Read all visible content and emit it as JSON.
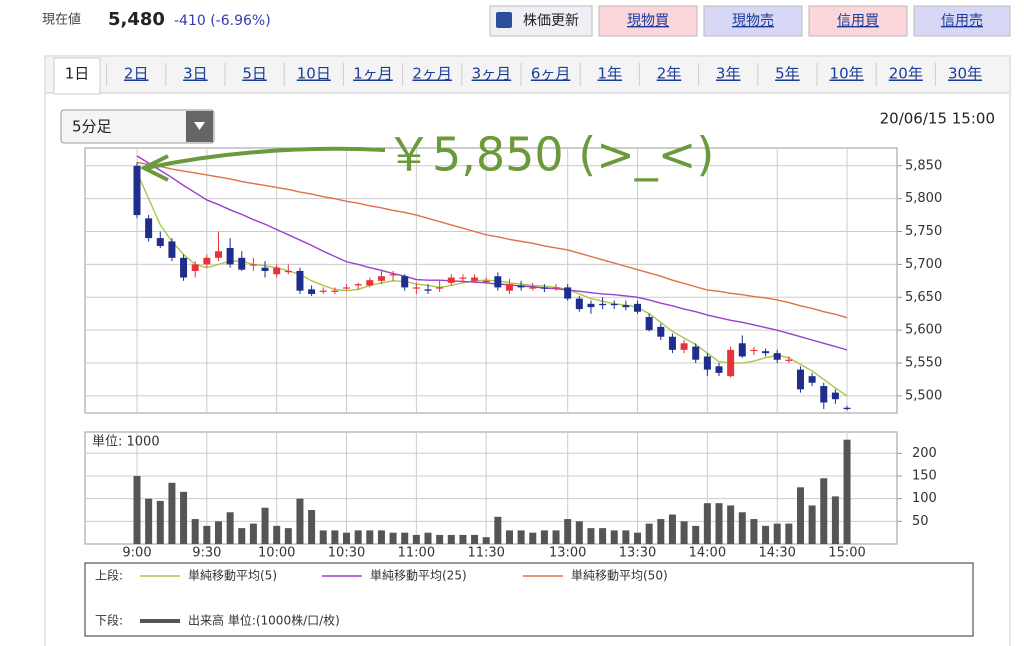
{
  "header": {
    "price_label": "現在値",
    "price": "5,480",
    "change": "-410 (-6.96%)",
    "buttons": [
      "株価更新",
      "現物買",
      "現物売",
      "信用買",
      "信用売"
    ]
  },
  "tabs": [
    "1日",
    "2日",
    "3日",
    "5日",
    "10日",
    "1ヶ月",
    "2ヶ月",
    "3ヶ月",
    "6ヶ月",
    "1年",
    "2年",
    "3年",
    "5年",
    "10年",
    "20年",
    "30年"
  ],
  "interval": "5分足",
  "timestamp": "20/06/15 15:00",
  "chart_data": [
    {
      "type": "candlestick",
      "annotation": "￥5,850 (>_<)",
      "legend_label": "上段:",
      "categories": [
        "9:00",
        null,
        null,
        null,
        null,
        null,
        "9:30",
        null,
        null,
        null,
        null,
        null,
        "10:00",
        null,
        null,
        null,
        null,
        null,
        "10:30",
        null,
        null,
        null,
        null,
        null,
        "11:00",
        null,
        null,
        null,
        null,
        null,
        "11:30",
        null,
        null,
        null,
        null,
        null,
        null,
        "13:00",
        null,
        null,
        null,
        null,
        null,
        "13:30",
        null,
        null,
        null,
        null,
        null,
        "14:00",
        null,
        null,
        null,
        null,
        null,
        "14:30",
        null,
        null,
        null,
        null,
        null,
        "15:00"
      ],
      "open": [
        5850,
        5770,
        5740,
        5735,
        5710,
        5690,
        5700,
        5710,
        5725,
        5710,
        5700,
        5695,
        5685,
        5690,
        5690,
        5662,
        5660,
        5660,
        5665,
        5668,
        5668,
        5675,
        5685,
        5682,
        5665,
        5662,
        5665,
        5672,
        5680,
        5675,
        5675,
        5682,
        5660,
        5668,
        5665,
        5665,
        5665,
        5665,
        5648,
        5640,
        5640,
        5640,
        5638,
        5640,
        5620,
        5605,
        5590,
        5570,
        5575,
        5560,
        5545,
        5530,
        5580,
        5570,
        5568,
        5565,
        5555,
        5540,
        5530,
        5515,
        5505,
        5482
      ],
      "high": [
        5855,
        5775,
        5750,
        5740,
        5715,
        5705,
        5715,
        5750,
        5740,
        5720,
        5710,
        5705,
        5700,
        5700,
        5695,
        5668,
        5665,
        5665,
        5670,
        5672,
        5680,
        5690,
        5690,
        5685,
        5672,
        5670,
        5675,
        5685,
        5685,
        5685,
        5680,
        5688,
        5678,
        5675,
        5672,
        5670,
        5670,
        5670,
        5652,
        5645,
        5650,
        5645,
        5645,
        5645,
        5625,
        5610,
        5595,
        5585,
        5580,
        5565,
        5550,
        5575,
        5592,
        5575,
        5572,
        5570,
        5560,
        5545,
        5535,
        5520,
        5510,
        5485
      ],
      "low": [
        5770,
        5735,
        5725,
        5705,
        5675,
        5680,
        5695,
        5705,
        5695,
        5690,
        5690,
        5680,
        5680,
        5685,
        5655,
        5652,
        5655,
        5655,
        5660,
        5662,
        5665,
        5670,
        5675,
        5660,
        5655,
        5655,
        5658,
        5668,
        5672,
        5672,
        5670,
        5660,
        5655,
        5660,
        5660,
        5658,
        5660,
        5645,
        5628,
        5625,
        5632,
        5632,
        5630,
        5625,
        5598,
        5585,
        5565,
        5565,
        5550,
        5530,
        5530,
        5528,
        5558,
        5562,
        5560,
        5550,
        5550,
        5505,
        5515,
        5480,
        5488,
        5478
      ],
      "close": [
        5775,
        5740,
        5728,
        5710,
        5680,
        5700,
        5710,
        5720,
        5700,
        5692,
        5700,
        5690,
        5695,
        5690,
        5660,
        5655,
        5660,
        5660,
        5665,
        5670,
        5676,
        5682,
        5685,
        5665,
        5665,
        5660,
        5665,
        5680,
        5680,
        5680,
        5675,
        5665,
        5670,
        5665,
        5665,
        5663,
        5665,
        5648,
        5632,
        5635,
        5638,
        5638,
        5635,
        5628,
        5600,
        5590,
        5570,
        5580,
        5555,
        5540,
        5535,
        5570,
        5560,
        5570,
        5565,
        5555,
        5555,
        5510,
        5520,
        5490,
        5495,
        5480
      ],
      "up_color": "#e8323c",
      "down_color": "#1f2d8c",
      "series": [
        {
          "name": "単純移動平均(5)",
          "color": "#a8c84a",
          "values": [
            5840,
            5800,
            5760,
            5735,
            5715,
            5700,
            5695,
            5700,
            5705,
            5705,
            5700,
            5698,
            5695,
            5690,
            5685,
            5675,
            5668,
            5662,
            5660,
            5662,
            5668,
            5672,
            5675,
            5674,
            5670,
            5668,
            5665,
            5668,
            5672,
            5675,
            5676,
            5675,
            5672,
            5670,
            5668,
            5667,
            5665,
            5662,
            5655,
            5648,
            5644,
            5640,
            5638,
            5635,
            5625,
            5612,
            5598,
            5588,
            5578,
            5565,
            5552,
            5550,
            5550,
            5553,
            5558,
            5562,
            5558,
            5548,
            5538,
            5525,
            5512,
            5500
          ]
        },
        {
          "name": "単純移動平均(25)",
          "color": "#9b3fd1",
          "values": [
            5865,
            5854,
            5843,
            5832,
            5820,
            5809,
            5798,
            5791,
            5783,
            5776,
            5768,
            5761,
            5753,
            5745,
            5737,
            5729,
            5720,
            5712,
            5704,
            5700,
            5695,
            5691,
            5686,
            5682,
            5677,
            5676,
            5676,
            5675,
            5674,
            5673,
            5672,
            5670,
            5669,
            5667,
            5666,
            5664,
            5663,
            5661,
            5659,
            5657,
            5655,
            5654,
            5652,
            5650,
            5646,
            5641,
            5637,
            5632,
            5628,
            5623,
            5619,
            5615,
            5612,
            5608,
            5604,
            5600,
            5595,
            5590,
            5585,
            5580,
            5575,
            5570
          ]
        },
        {
          "name": "単純移動平均(50)",
          "color": "#e0704a",
          "values": [
            5855,
            5852,
            5849,
            5845,
            5842,
            5839,
            5836,
            5833,
            5830,
            5826,
            5823,
            5820,
            5817,
            5814,
            5810,
            5807,
            5803,
            5800,
            5796,
            5793,
            5789,
            5786,
            5782,
            5779,
            5775,
            5770,
            5765,
            5760,
            5755,
            5750,
            5745,
            5742,
            5738,
            5735,
            5732,
            5728,
            5725,
            5722,
            5717,
            5712,
            5707,
            5702,
            5697,
            5692,
            5687,
            5682,
            5676,
            5671,
            5666,
            5661,
            5659,
            5656,
            5654,
            5651,
            5649,
            5646,
            5642,
            5637,
            5633,
            5628,
            5624,
            5619
          ]
        }
      ],
      "ylim": [
        5474,
        5877
      ],
      "yticks": [
        {
          "value": 5500,
          "label": "5,500"
        },
        {
          "value": 5550,
          "label": "5,550"
        },
        {
          "value": 5600,
          "label": "5,600"
        },
        {
          "value": 5650,
          "label": "5,650"
        },
        {
          "value": 5700,
          "label": "5,700"
        },
        {
          "value": 5750,
          "label": "5,750"
        },
        {
          "value": 5800,
          "label": "5,800"
        },
        {
          "value": 5850,
          "label": "5,850"
        }
      ],
      "grid": true
    },
    {
      "type": "bar",
      "unit_label": "単位: 1000",
      "legend_label": "下段:",
      "name": "出来高 単位:(1000株/口/枚)",
      "color": "#555555",
      "values": [
        150,
        100,
        95,
        135,
        115,
        55,
        40,
        50,
        70,
        35,
        45,
        80,
        40,
        35,
        100,
        75,
        30,
        30,
        25,
        30,
        30,
        30,
        25,
        25,
        20,
        25,
        20,
        20,
        20,
        20,
        15,
        60,
        30,
        30,
        25,
        30,
        30,
        55,
        50,
        35,
        35,
        30,
        30,
        25,
        45,
        55,
        65,
        50,
        40,
        90,
        90,
        85,
        70,
        55,
        40,
        45,
        45,
        125,
        85,
        145,
        105,
        230
      ],
      "ylim": [
        0,
        247
      ],
      "yticks": [
        50,
        100,
        150,
        200
      ],
      "grid": true
    }
  ]
}
